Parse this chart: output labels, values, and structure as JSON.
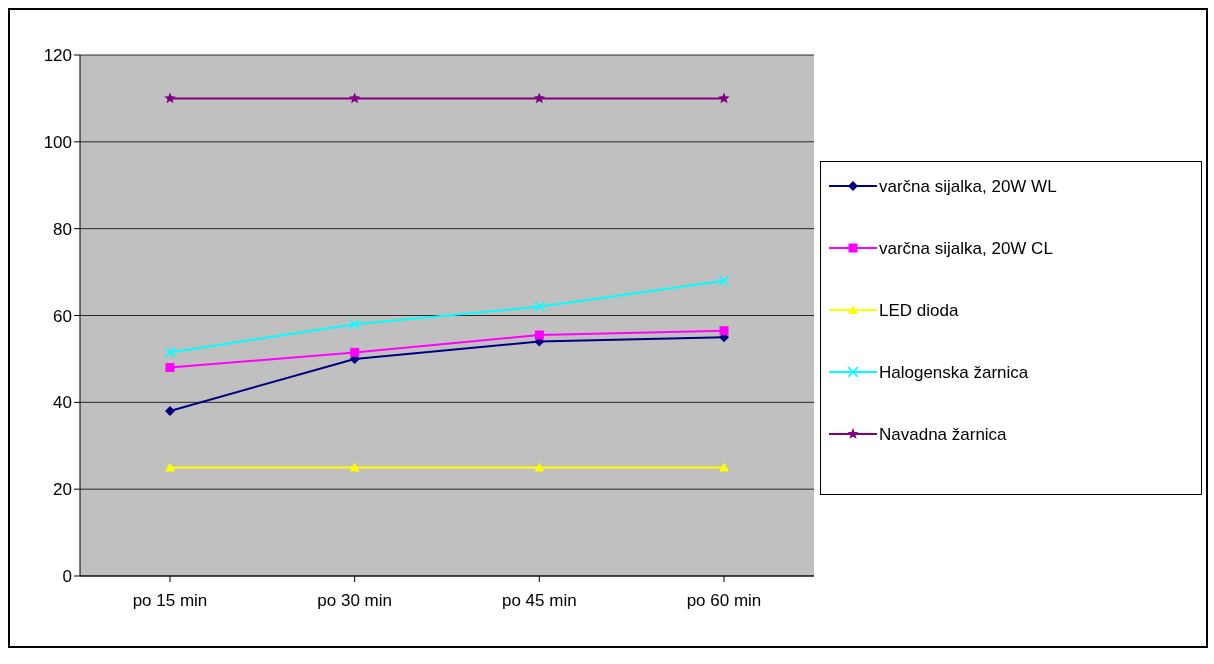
{
  "chart_data": {
    "type": "line",
    "categories": [
      "po 15 min",
      "po 30 min",
      "po 45 min",
      "po 60 min"
    ],
    "series": [
      {
        "name": "varčna sijalka, 20W WL",
        "color": "#000080",
        "marker": "diamond",
        "values": [
          38,
          50,
          54,
          55
        ]
      },
      {
        "name": "varčna sijalka, 20W CL",
        "color": "#ff00ff",
        "marker": "square",
        "values": [
          48,
          51.5,
          55.5,
          56.5
        ]
      },
      {
        "name": "LED dioda",
        "color": "#ffff00",
        "marker": "triangle",
        "values": [
          25,
          25,
          25,
          25
        ]
      },
      {
        "name": "Halogenska žarnica",
        "color": "#00ffff",
        "marker": "cross",
        "values": [
          51.5,
          58,
          62,
          68
        ]
      },
      {
        "name": "Navadna žarnica",
        "color": "#800080",
        "marker": "star",
        "values": [
          110,
          110,
          110,
          110
        ]
      }
    ],
    "ylim": [
      0,
      120
    ],
    "yticks": [
      0,
      20,
      40,
      60,
      80,
      100,
      120
    ],
    "grid": "y",
    "legend": "right",
    "line_style": "solid"
  }
}
